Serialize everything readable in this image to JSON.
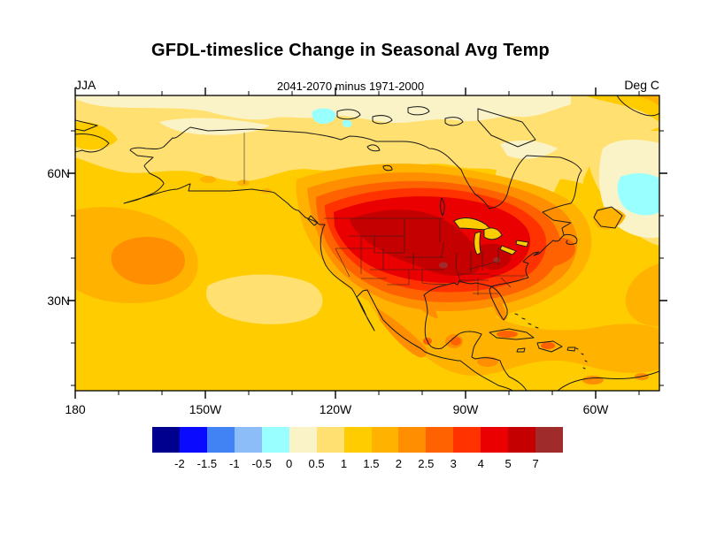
{
  "chart_data": {
    "type": "filled_contour_map",
    "title": "GFDL-timeslice Change in Seasonal Avg Temp",
    "subtitle_left": "JJA",
    "subtitle_center": "2041-2070 minus 1971-2000",
    "subtitle_right": "Deg C",
    "region": "North America, cylindrical equidistant projection",
    "units": "Deg C",
    "x_axis": {
      "label_ticks": [
        "180",
        "150W",
        "120W",
        "90W",
        "60W"
      ],
      "minor_tick_interval_deg": 10,
      "lon_range": [
        "180",
        "45W"
      ]
    },
    "y_axis": {
      "label_ticks": [
        "60N",
        "30N"
      ],
      "minor_tick_interval_deg": 10,
      "lat_range": [
        "10N",
        "78N"
      ]
    },
    "contour_levels": [
      -2,
      -1.5,
      -1,
      -0.5,
      0,
      0.5,
      1,
      1.5,
      2,
      2.5,
      3,
      4,
      5,
      7
    ],
    "colorbar_labels": [
      "-2",
      "-1.5",
      "-1",
      "-0.5",
      "0",
      "0.5",
      "1",
      "1.5",
      "2",
      "2.5",
      "3",
      "4",
      "5",
      "7"
    ],
    "palette": [
      "#00008F",
      "#0A0AFF",
      "#4182F4",
      "#8CBDF8",
      "#99FFFF",
      "#FBF3C8",
      "#FFE070",
      "#FFCC00",
      "#FFB200",
      "#FF8F00",
      "#FF6200",
      "#FF3200",
      "#EA0000",
      "#C40000",
      "#A02B2B"
    ],
    "features": [
      {
        "area": "Northern Plains / Upper Midwest / Ohio Valley core",
        "value": "+4 to +5"
      },
      {
        "area": "Western & central US, s. Canada, NE US ring",
        "value": "+2.5 to +4"
      },
      {
        "area": "Mexico, Gulf coast, Caribbean islands",
        "value": "+2 to +3"
      },
      {
        "area": "Subtropical Pacific and Atlantic oceans",
        "value": "+1 to +1.5"
      },
      {
        "area": "Pacific warm blob and Caribbean waters",
        "value": "+2 to +2.5"
      },
      {
        "area": "Arctic coastal band, Alaska north slope",
        "value": "0 to +0.5"
      },
      {
        "area": "Arctic Archipelago patch and Labrador Sea patch",
        "value": "-0.5 to 0"
      }
    ]
  }
}
